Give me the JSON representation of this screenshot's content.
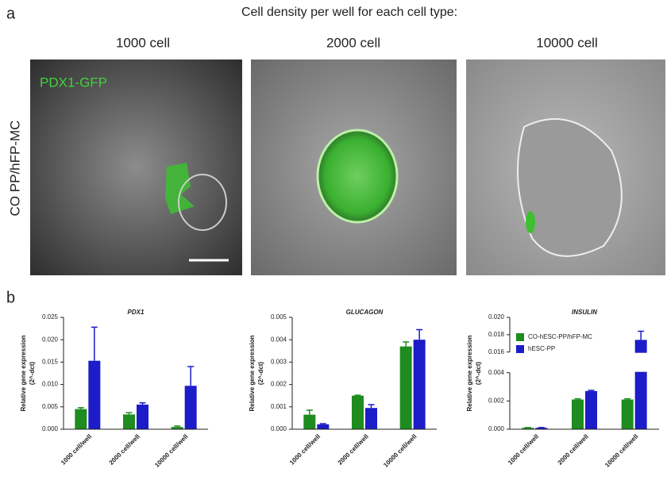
{
  "panel_a": {
    "label": "a",
    "heading": "Cell density per well for each cell type:",
    "columns": [
      "1000 cell",
      "2000 cell",
      "10000 cell"
    ],
    "row_label": "CO PP/hFP-MC",
    "overlay_label": "PDX1-GFP"
  },
  "panel_b": {
    "label": "b"
  },
  "chart_data": [
    {
      "type": "bar",
      "title": "PDX1",
      "ylabel": [
        "Relative gene expression",
        "(2^-dct)"
      ],
      "categories": [
        "1000 cell/well",
        "2000 cell/well",
        "10000 cell/well"
      ],
      "series": [
        {
          "color": "#1e8c1e",
          "values": [
            0.0045,
            0.0033,
            0.0005
          ],
          "errors": [
            0.0003,
            0.0004,
            0.0002
          ]
        },
        {
          "color": "#1c1cc8",
          "values": [
            0.0153,
            0.0055,
            0.0097
          ],
          "errors": [
            0.0075,
            0.0004,
            0.0043
          ]
        }
      ],
      "ylim": [
        0,
        0.025
      ],
      "yticks": [
        {
          "value": 0,
          "label": "0.000"
        },
        {
          "value": 0.005,
          "label": "0.005"
        },
        {
          "value": 0.01,
          "label": "0.010"
        },
        {
          "value": 0.015,
          "label": "0.015"
        },
        {
          "value": 0.02,
          "label": "0.020"
        },
        {
          "value": 0.025,
          "label": "0.025"
        }
      ]
    },
    {
      "type": "bar",
      "title": "GLUCAGON",
      "ylabel": [
        "Relative gene expression",
        "(2^-dct)"
      ],
      "categories": [
        "1000 cell/well",
        "2000 cell/well",
        "10000 cell/well"
      ],
      "series": [
        {
          "color": "#1e8c1e",
          "values": [
            0.00065,
            0.0015,
            0.0037
          ],
          "errors": [
            0.0002,
            2e-05,
            0.0002
          ]
        },
        {
          "color": "#1c1cc8",
          "values": [
            0.00022,
            0.00095,
            0.004
          ],
          "errors": [
            3e-05,
            0.00015,
            0.00045
          ]
        }
      ],
      "ylim": [
        0,
        0.005
      ],
      "yticks": [
        {
          "value": 0,
          "label": "0.000"
        },
        {
          "value": 0.001,
          "label": "0.001"
        },
        {
          "value": 0.002,
          "label": "0.002"
        },
        {
          "value": 0.003,
          "label": "0.003"
        },
        {
          "value": 0.004,
          "label": "0.004"
        },
        {
          "value": 0.005,
          "label": "0.005"
        }
      ]
    },
    {
      "type": "bar",
      "title": "INSULIN",
      "ylabel": [
        "Relative gene expression",
        "(2^-dct)"
      ],
      "categories": [
        "1000 cell/well",
        "2000 cell/well",
        "10000 cell/well"
      ],
      "series": [
        {
          "name": "CO-hESC-PP/hFP-MC",
          "color": "#1e8c1e",
          "values": [
            0.0001,
            0.0021,
            0.0021
          ],
          "errors": [
            2e-05,
            5e-05,
            5e-05
          ]
        },
        {
          "name": "hESC-PP",
          "color": "#1c1cc8",
          "values": [
            0.0001,
            0.0027,
            0.0174
          ],
          "errors": [
            2e-05,
            5e-05,
            0.001
          ]
        }
      ],
      "ylim": [
        0,
        0.02
      ],
      "axis_break": [
        0.004,
        0.016
      ],
      "legend": "upper left",
      "yticks": [
        {
          "value": 0,
          "label": "0.000"
        },
        {
          "value": 0.002,
          "label": "0.002"
        },
        {
          "value": 0.004,
          "label": "0.004"
        },
        {
          "value": 0.016,
          "label": "0.016"
        },
        {
          "value": 0.018,
          "label": "0.018"
        },
        {
          "value": 0.02,
          "label": "0.020"
        }
      ]
    }
  ]
}
